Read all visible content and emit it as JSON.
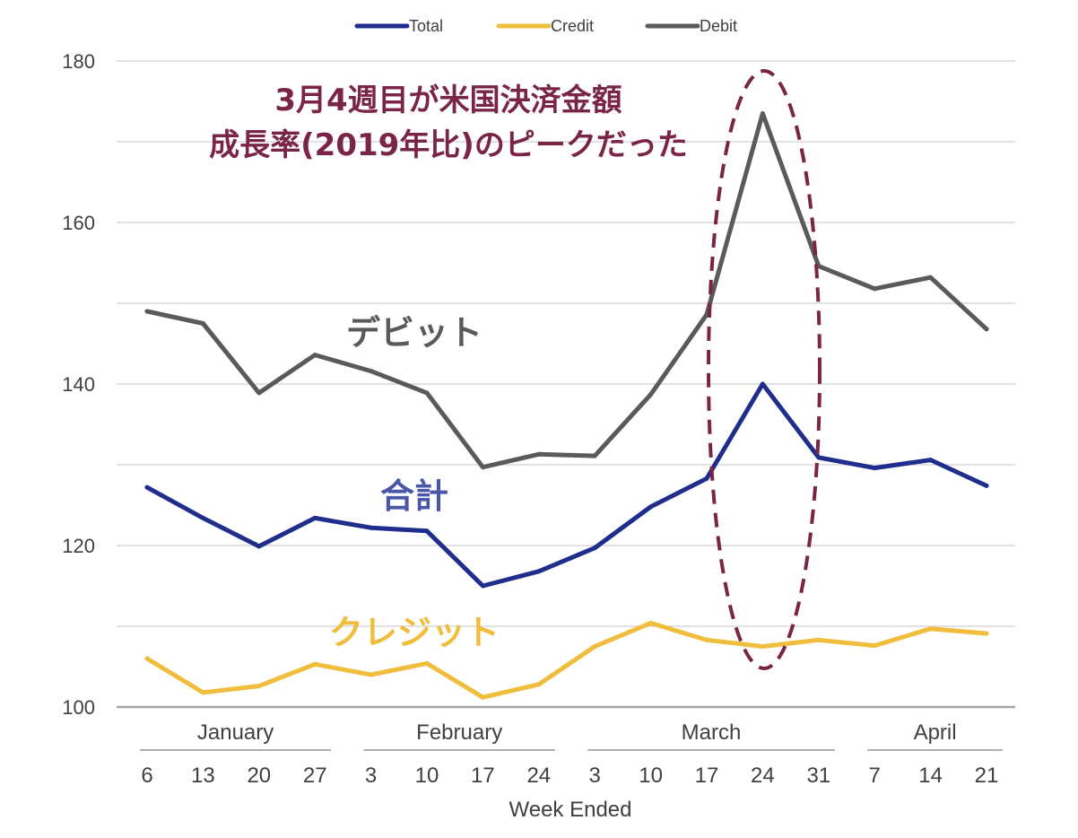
{
  "chart_data": {
    "type": "line",
    "title": "",
    "xlabel": "Week Ended",
    "ylabel": "",
    "ylim": [
      100,
      180
    ],
    "yticks": [
      100,
      120,
      140,
      160,
      180
    ],
    "grid": true,
    "legend_position": "top-center",
    "month_groups": [
      {
        "label": "January",
        "span": [
          0,
          3
        ]
      },
      {
        "label": "February",
        "span": [
          4,
          7
        ]
      },
      {
        "label": "March",
        "span": [
          8,
          12
        ]
      },
      {
        "label": "April",
        "span": [
          13,
          15
        ]
      }
    ],
    "categories": [
      "6",
      "13",
      "20",
      "27",
      "3",
      "10",
      "17",
      "24",
      "3",
      "10",
      "17",
      "24",
      "31",
      "7",
      "14",
      "21"
    ],
    "series": [
      {
        "name": "Total",
        "color": "#1f2d8c",
        "values": [
          127.2,
          123.4,
          119.9,
          123.4,
          122.2,
          121.8,
          115.0,
          116.8,
          119.7,
          124.8,
          128.3,
          140.0,
          130.9,
          129.6,
          130.6,
          127.4
        ]
      },
      {
        "name": "Credit",
        "color": "#f0bd3c",
        "values": [
          106.0,
          101.8,
          102.6,
          105.3,
          104.0,
          105.4,
          101.2,
          102.8,
          107.5,
          110.4,
          108.3,
          107.5,
          108.3,
          107.6,
          109.7,
          109.1
        ]
      },
      {
        "name": "Debit",
        "color": "#5a5a5a",
        "values": [
          149.0,
          147.5,
          138.9,
          143.6,
          141.6,
          138.9,
          129.7,
          131.3,
          131.1,
          138.7,
          148.6,
          173.5,
          154.6,
          151.8,
          153.2,
          146.8
        ]
      }
    ],
    "annotations": {
      "headline_line1": "3月4週目が米国決済金額",
      "headline_line2": "成長率(2019年比)のピークだった",
      "debit_label": "デビット",
      "total_label": "合計",
      "credit_label": "クレジット",
      "highlight_category_index": 11,
      "highlight_color": "#7a2448"
    }
  }
}
